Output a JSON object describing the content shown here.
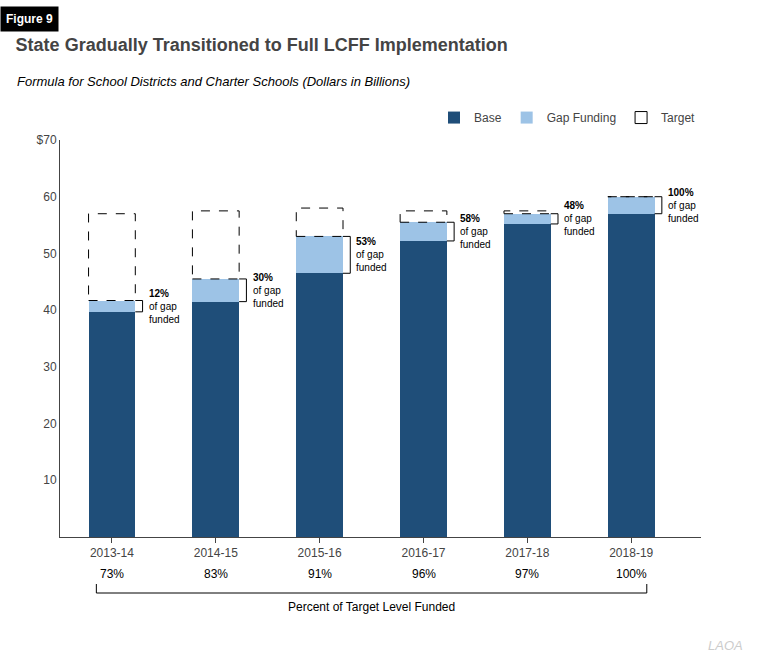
{
  "chart_data": {
    "type": "bar",
    "stacked": true,
    "figure_label": "Figure 9",
    "title": "State Gradually Transitioned to Full LCFF Implementation",
    "subtitle": "Formula for School Districts and Charter Schools (Dollars in Billions)",
    "categories": [
      "2013-14",
      "2014-15",
      "2015-16",
      "2016-17",
      "2017-18",
      "2018-19"
    ],
    "series": [
      {
        "name": "Base",
        "color": "#1f4e79",
        "values": [
          39.7,
          41.5,
          46.5,
          52.2,
          55.2,
          57.0
        ]
      },
      {
        "name": "Gap Funding",
        "color": "#9dc3e6",
        "values": [
          2.0,
          4.0,
          6.5,
          3.3,
          1.8,
          3.0
        ]
      }
    ],
    "target": {
      "name": "Target",
      "values": [
        57.0,
        57.5,
        58.0,
        57.5,
        57.5,
        60.0
      ]
    },
    "gap_funded": {
      "values": [
        12,
        30,
        53,
        58,
        48,
        100
      ],
      "value_labels": [
        "12%",
        "30%",
        "53%",
        "58%",
        "48%",
        "100%"
      ],
      "text": [
        "of gap",
        "funded"
      ]
    },
    "pct_of_target": {
      "title": "Percent of Target Level Funded",
      "values": [
        73,
        83,
        91,
        96,
        97,
        100
      ],
      "value_labels": [
        "73%",
        "83%",
        "91%",
        "96%",
        "97%",
        "100%"
      ]
    },
    "ylim": [
      0,
      70
    ],
    "yticks": [
      10,
      20,
      30,
      40,
      50,
      60,
      {
        "value": 70,
        "label": "$70"
      }
    ],
    "grid": false,
    "legend": "top",
    "watermark": "LAOA"
  }
}
